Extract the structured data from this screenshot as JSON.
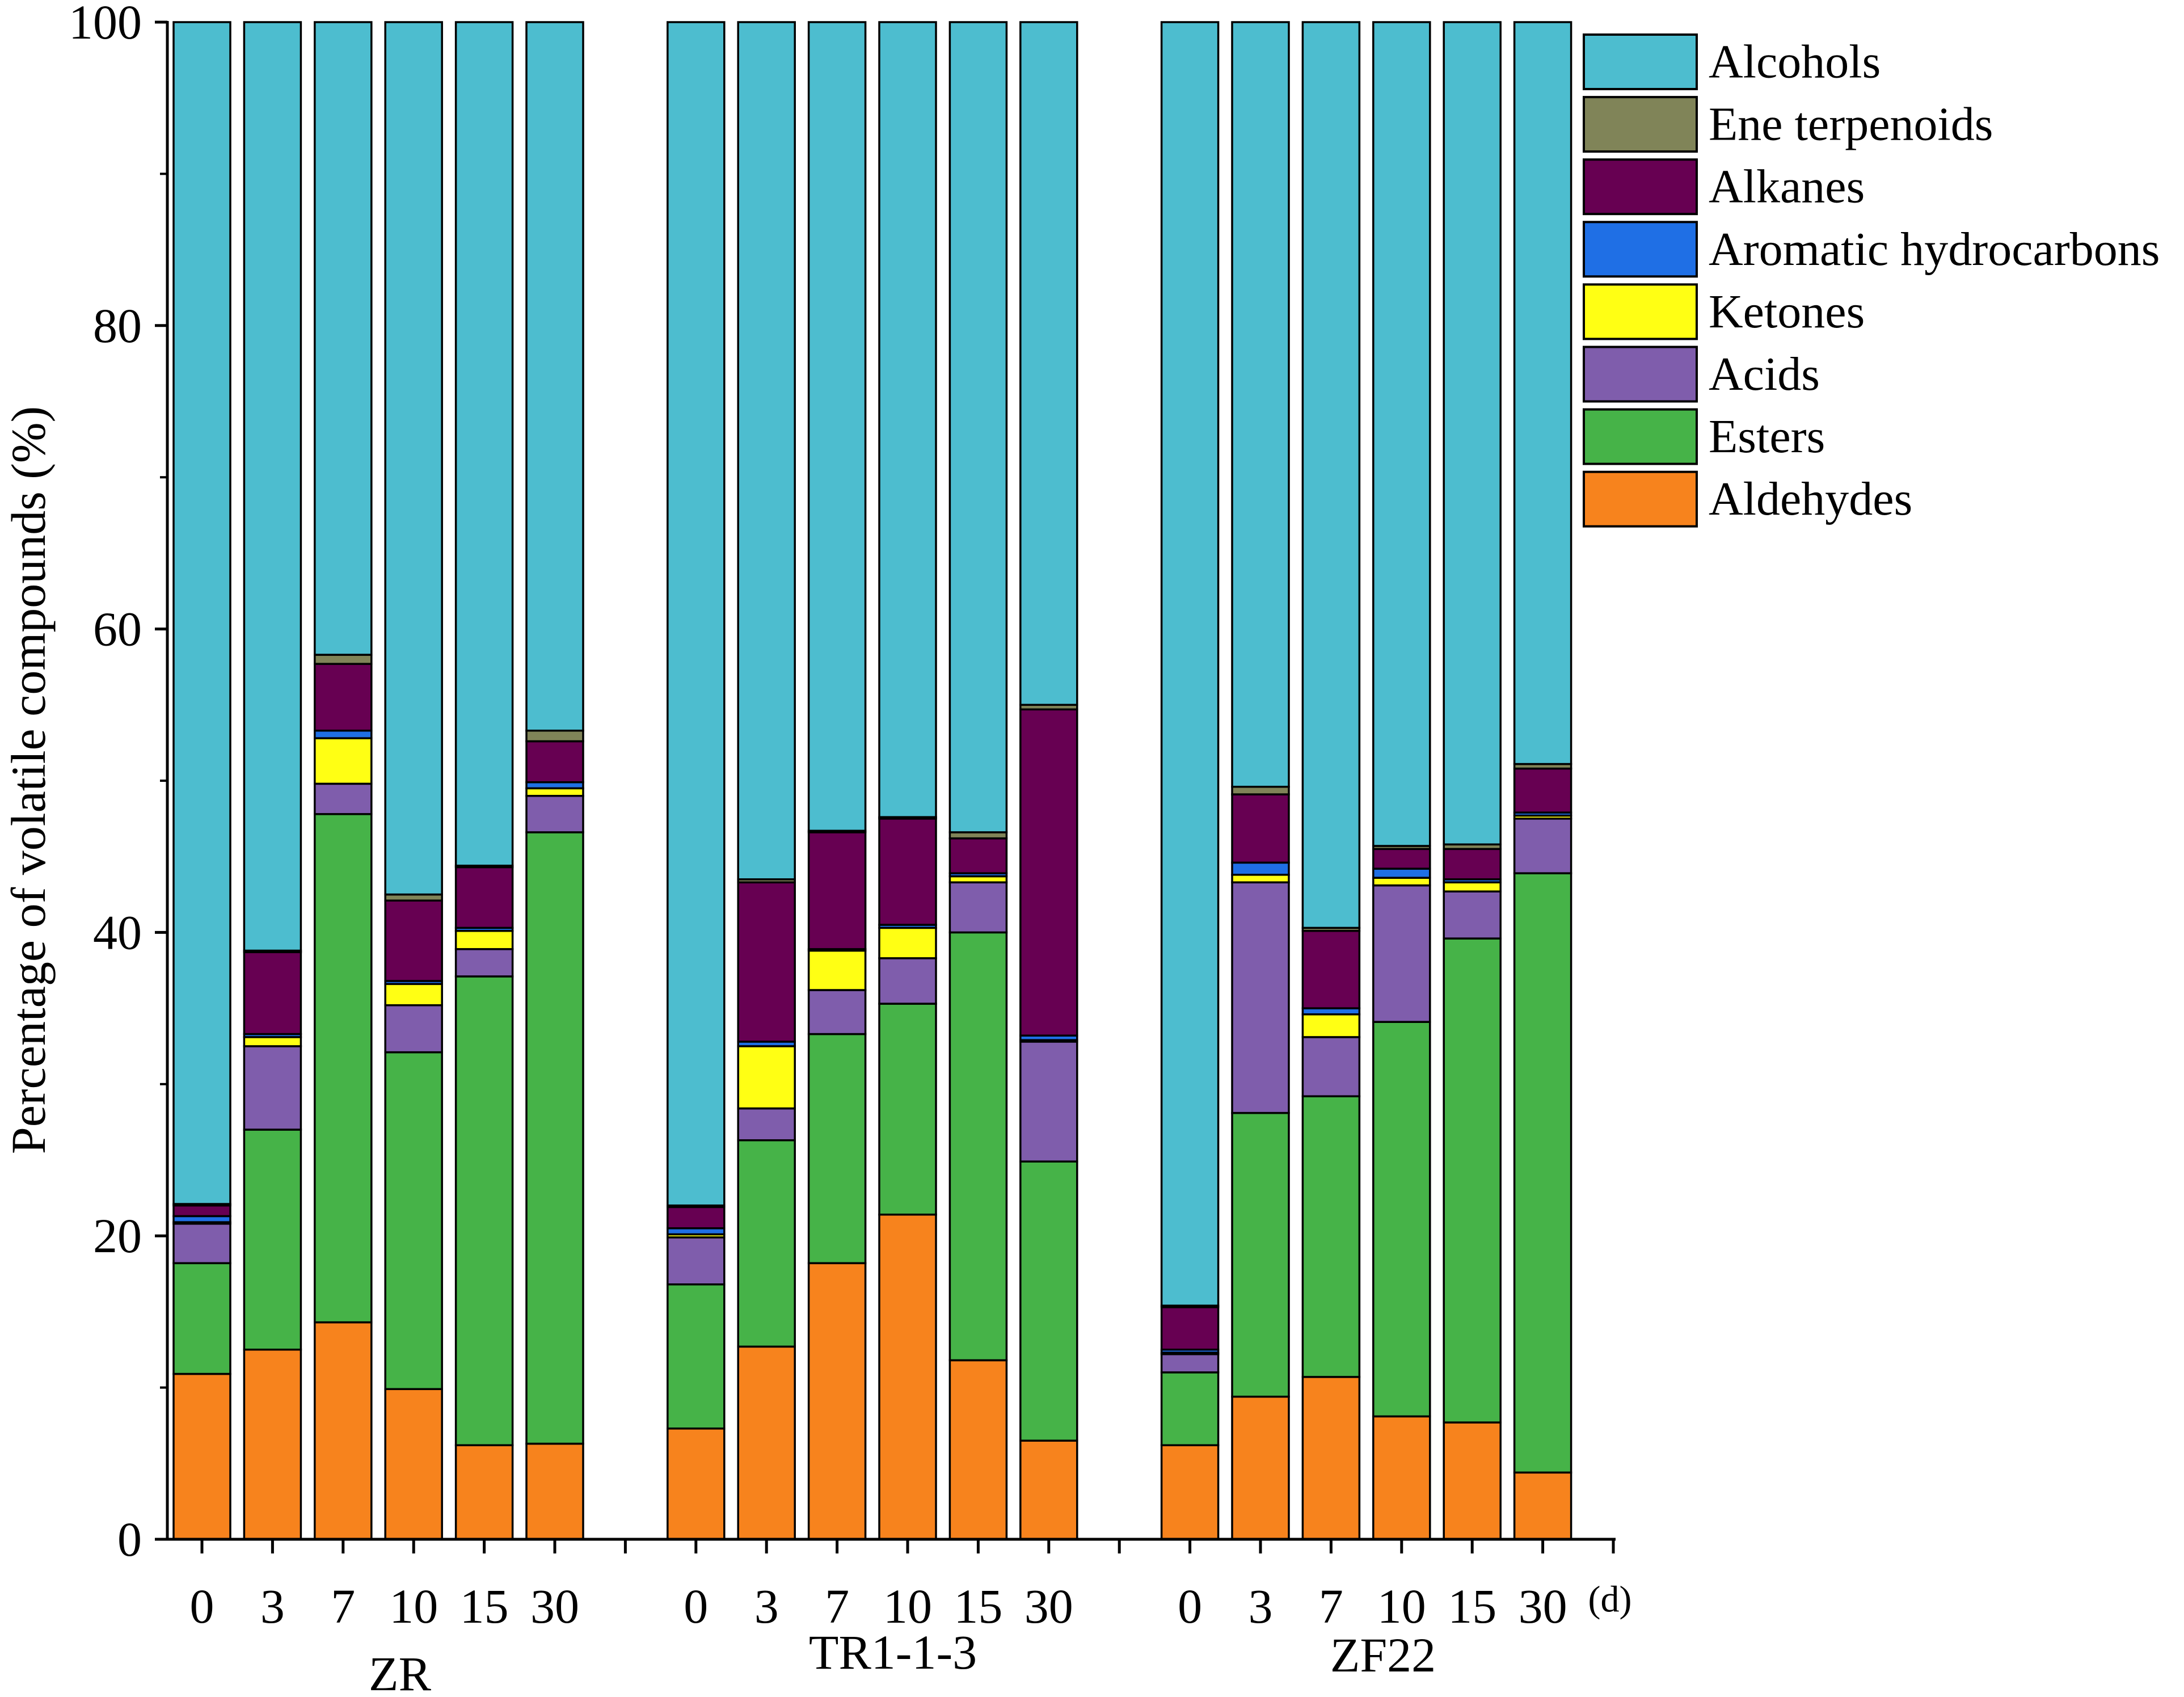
{
  "chart_data": {
    "type": "bar",
    "stacked": true,
    "ylabel": "Percentage of volatile compounds (%)",
    "x_unit_label": "(d)",
    "ylim": [
      0,
      100
    ],
    "yticks": [
      0,
      20,
      40,
      60,
      80,
      100
    ],
    "grid": false,
    "legend_position": "top-right",
    "groups": [
      {
        "name": "ZR",
        "categories": [
          "0",
          "3",
          "7",
          "10",
          "15",
          "30"
        ]
      },
      {
        "name": "TR1-1-3",
        "categories": [
          "0",
          "3",
          "7",
          "10",
          "15",
          "30"
        ]
      },
      {
        "name": "ZF22",
        "categories": [
          "0",
          "3",
          "7",
          "10",
          "15",
          "30"
        ]
      }
    ],
    "series": [
      {
        "name": "Aldehydes",
        "color": "#F7831D",
        "values": [
          10.9,
          12.5,
          14.3,
          9.9,
          6.2,
          6.3,
          7.3,
          12.7,
          18.2,
          21.4,
          11.8,
          6.5,
          6.2,
          9.4,
          10.7,
          8.1,
          7.7,
          4.4
        ]
      },
      {
        "name": "Esters",
        "color": "#46B348",
        "values": [
          7.3,
          14.5,
          33.5,
          22.2,
          30.9,
          40.3,
          9.5,
          13.6,
          15.1,
          13.9,
          28.2,
          18.4,
          4.8,
          18.7,
          18.5,
          26.0,
          31.9,
          39.5
        ]
      },
      {
        "name": "Acids",
        "color": "#7F5DAC",
        "values": [
          2.6,
          5.5,
          2.0,
          3.1,
          1.8,
          2.4,
          3.1,
          2.1,
          2.9,
          3.0,
          3.3,
          7.9,
          1.2,
          15.2,
          3.9,
          9.0,
          3.1,
          3.6
        ]
      },
      {
        "name": "Ketones",
        "color": "#FFFF14",
        "values": [
          0.1,
          0.6,
          3.0,
          1.4,
          1.2,
          0.5,
          0.2,
          4.1,
          2.6,
          2.0,
          0.4,
          0.1,
          0.1,
          0.5,
          1.5,
          0.5,
          0.6,
          0.2
        ]
      },
      {
        "name": "Aromatic hydrocarbons",
        "color": "#1F6FE5",
        "values": [
          0.4,
          0.2,
          0.5,
          0.2,
          0.2,
          0.4,
          0.4,
          0.3,
          0.1,
          0.2,
          0.2,
          0.3,
          0.2,
          0.8,
          0.4,
          0.6,
          0.2,
          0.2
        ]
      },
      {
        "name": "Alkanes",
        "color": "#670052",
        "values": [
          0.7,
          5.4,
          4.4,
          5.3,
          4.0,
          2.7,
          1.4,
          10.5,
          7.7,
          7.0,
          2.3,
          21.5,
          2.8,
          4.5,
          5.1,
          1.3,
          2.0,
          2.9
        ]
      },
      {
        "name": "Ene terpenoids",
        "color": "#808458",
        "values": [
          0.1,
          0.1,
          0.6,
          0.4,
          0.1,
          0.7,
          0.1,
          0.2,
          0.1,
          0.1,
          0.4,
          0.3,
          0.1,
          0.5,
          0.2,
          0.2,
          0.3,
          0.3
        ]
      },
      {
        "name": "Alcohols",
        "color": "#4DBDCF",
        "values": [
          77.9,
          61.2,
          41.7,
          57.5,
          55.6,
          46.7,
          78.0,
          56.5,
          53.3,
          52.4,
          53.4,
          45.0,
          84.6,
          50.4,
          59.7,
          54.3,
          54.2,
          48.9
        ]
      }
    ]
  }
}
